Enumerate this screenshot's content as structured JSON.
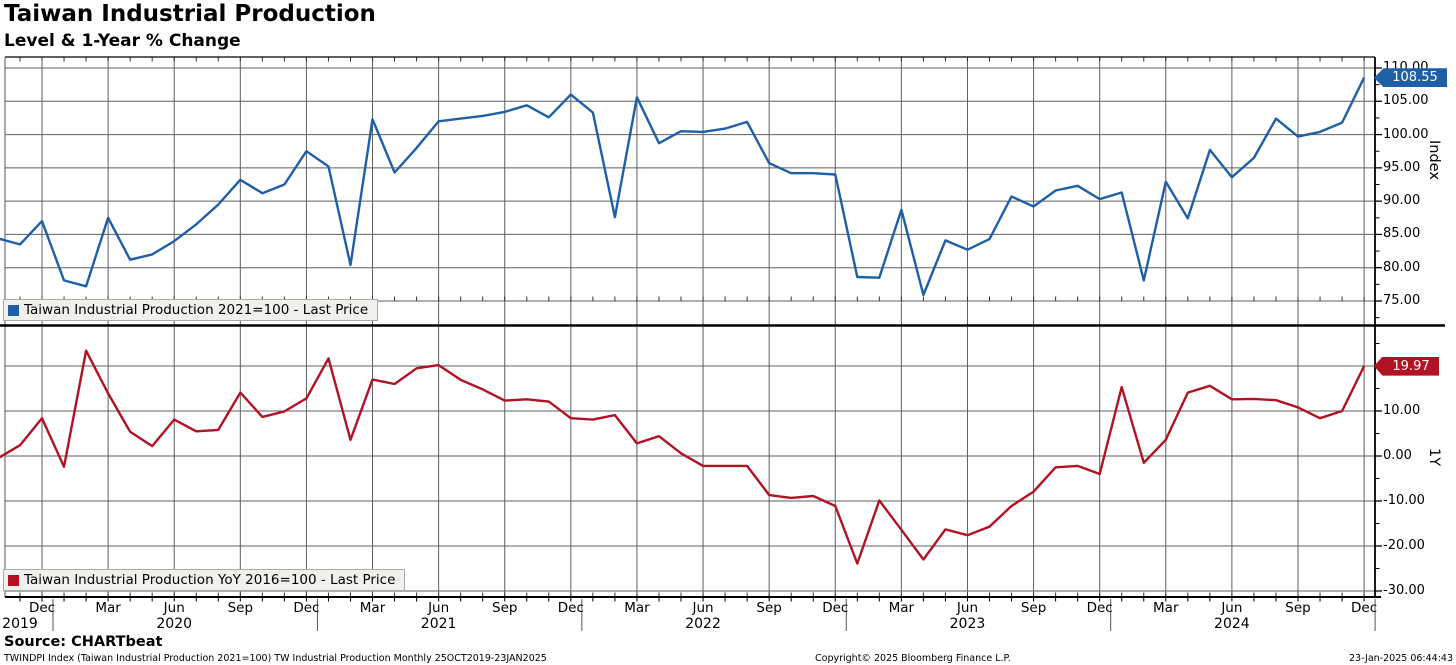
{
  "header": {
    "title": "Taiwan Industrial Production",
    "subtitle": "Level & 1-Year % Change"
  },
  "colors": {
    "index_line": "#1e5fa6",
    "yoy_line": "#b11325",
    "grid": "#5f5f5f",
    "axis": "#000000",
    "legend_bg": "#f0f0ec",
    "badge_text": "#ffffff"
  },
  "legends": {
    "index": "Taiwan Industrial Production 2021=100 - Last Price",
    "yoy": "Taiwan Industrial Production YoY 2016=100 - Last Price"
  },
  "badges": {
    "index_last": "108.55",
    "yoy_last": "19.97"
  },
  "axes": {
    "top": {
      "title": "Index",
      "tick_labels": [
        "110.00",
        "105.00",
        "100.00",
        "95.00",
        "90.00",
        "85.00",
        "80.00",
        "75.00"
      ]
    },
    "bottom": {
      "title": "1Y",
      "tick_labels": [
        "10.00",
        "0.00",
        "-10.00",
        "-20.00",
        "-30.00"
      ]
    },
    "x": {
      "tick_labels": [
        "Dec",
        "Mar",
        "Jun",
        "Sep",
        "Dec",
        "Mar",
        "Jun",
        "Sep",
        "Dec",
        "Mar",
        "Jun",
        "Sep",
        "Dec",
        "Mar",
        "Jun",
        "Sep",
        "Dec",
        "Mar",
        "Jun",
        "Sep",
        "Dec"
      ],
      "year_labels": [
        "2019",
        "2020",
        "2021",
        "2022",
        "2023",
        "2024"
      ]
    }
  },
  "footer": {
    "source": "Source: CHARTbeat",
    "fine_print": "TWINDPI Index (Taiwan Industrial Production 2021=100) TW Industrial Production  Monthly 25OCT2019-23JAN2025",
    "copyright": "Copyright© 2025 Bloomberg Finance L.P.",
    "datetime": "23-Jan-2025 06:44:43"
  },
  "chart_data": {
    "type": "line",
    "title": "Taiwan Industrial Production — Level & 1-Year % Change",
    "grid": true,
    "legend_position": "inside-left-bottom",
    "x_months": [
      "2019-10",
      "2019-11",
      "2019-12",
      "2020-01",
      "2020-02",
      "2020-03",
      "2020-04",
      "2020-05",
      "2020-06",
      "2020-07",
      "2020-08",
      "2020-09",
      "2020-10",
      "2020-11",
      "2020-12",
      "2021-01",
      "2021-02",
      "2021-03",
      "2021-04",
      "2021-05",
      "2021-06",
      "2021-07",
      "2021-08",
      "2021-09",
      "2021-10",
      "2021-11",
      "2021-12",
      "2022-01",
      "2022-02",
      "2022-03",
      "2022-04",
      "2022-05",
      "2022-06",
      "2022-07",
      "2022-08",
      "2022-09",
      "2022-10",
      "2022-11",
      "2022-12",
      "2023-01",
      "2023-02",
      "2023-03",
      "2023-04",
      "2023-05",
      "2023-06",
      "2023-07",
      "2023-08",
      "2023-09",
      "2023-10",
      "2023-11",
      "2023-12",
      "2024-01",
      "2024-02",
      "2024-03",
      "2024-04",
      "2024-05",
      "2024-06",
      "2024-07",
      "2024-08",
      "2024-09",
      "2024-10",
      "2024-11",
      "2024-12"
    ],
    "series": [
      {
        "name": "Taiwan Industrial Production 2021=100 - Last Price",
        "axis": "Index",
        "panel": "top",
        "color": "#1e5fa6",
        "last_price": 108.55,
        "ylim": [
          71.5,
          111.5
        ],
        "yticks": [
          110,
          105,
          100,
          95,
          90,
          85,
          80,
          75
        ],
        "values": [
          84.4,
          83.5,
          87.0,
          78.1,
          77.2,
          87.5,
          81.2,
          82.0,
          84.0,
          86.5,
          89.5,
          93.2,
          91.2,
          92.5,
          97.5,
          95.2,
          80.4,
          102.3,
          94.3,
          98.0,
          102.0,
          102.4,
          102.8,
          103.4,
          104.4,
          102.6,
          106.0,
          103.3,
          87.6,
          105.6,
          98.7,
          100.5,
          100.4,
          100.9,
          101.9,
          95.7,
          94.2,
          94.2,
          94.0,
          78.6,
          78.5,
          88.7,
          75.9,
          84.1,
          82.7,
          84.3,
          90.7,
          89.2,
          91.6,
          92.3,
          90.3,
          91.3,
          78.1,
          92.9,
          87.4,
          97.7,
          93.6,
          96.5,
          102.4,
          99.7,
          100.4,
          101.8,
          108.55
        ]
      },
      {
        "name": "Taiwan Industrial Production YoY 2016=100 - Last Price",
        "axis": "1Y",
        "panel": "bottom",
        "color": "#b11325",
        "last_price": 19.97,
        "ylim": [
          -31.3,
          28.7
        ],
        "yticks": [
          20,
          10,
          0,
          -10,
          -20,
          -30
        ],
        "values": [
          -0.5,
          2.4,
          8.4,
          -2.4,
          23.4,
          13.9,
          5.4,
          2.2,
          8.1,
          5.5,
          5.8,
          14.1,
          8.7,
          9.9,
          12.8,
          21.7,
          3.6,
          17.0,
          16.0,
          19.5,
          20.2,
          16.9,
          14.8,
          12.3,
          12.6,
          12.1,
          8.4,
          8.1,
          9.1,
          2.8,
          4.4,
          0.6,
          -2.2,
          -2.2,
          -2.2,
          -8.7,
          -9.3,
          -8.9,
          -11.1,
          -23.9,
          -9.9,
          -16.4,
          -23.0,
          -16.3,
          -17.6,
          -15.7,
          -11.1,
          -7.9,
          -2.5,
          -2.2,
          -4.0,
          15.3,
          -1.5,
          3.6,
          14.1,
          15.6,
          12.6,
          12.7,
          12.4,
          10.8,
          8.4,
          10.0,
          19.97
        ]
      }
    ]
  }
}
